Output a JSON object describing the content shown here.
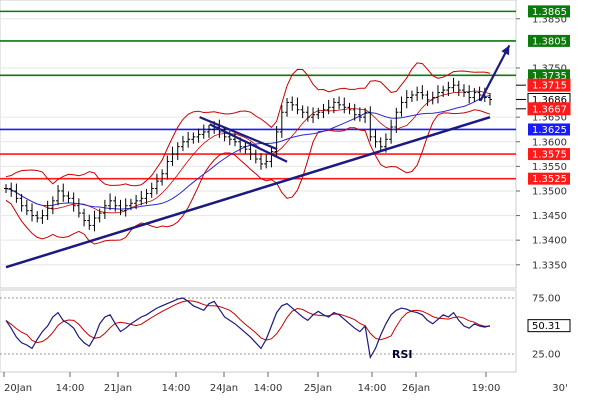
{
  "chart_data": [
    {
      "type": "candlestick",
      "y_axis": {
        "ticks": [
          "1.3850",
          "1.3750",
          "1.3650",
          "1.3600",
          "1.3550",
          "1.3500",
          "1.3450",
          "1.3400",
          "1.3350"
        ],
        "ylim": [
          1.3315,
          1.388
        ]
      },
      "x_axis": {
        "ticks": [
          "20Jan",
          "14:00",
          "21Jan",
          "14:00",
          "24Jan",
          "14:00",
          "25Jan",
          "14:00",
          "26Jan",
          "19:00"
        ],
        "corner_label": "30'"
      },
      "levels": [
        {
          "value": 1.3865,
          "label": "1.3865",
          "color": "#0a7a0a"
        },
        {
          "value": 1.3805,
          "label": "1.3805",
          "color": "#0a7a0a"
        },
        {
          "value": 1.3735,
          "label": "1.3735",
          "color": "#0a7a0a"
        },
        {
          "value": 1.3625,
          "label": "1.3625",
          "color": "#1a1aff"
        },
        {
          "value": 1.3575,
          "label": "1.3575",
          "color": "#ff1a1a"
        },
        {
          "value": 1.3525,
          "label": "1.3525",
          "color": "#ff1a1a"
        }
      ],
      "price_tags": [
        {
          "value": 1.3715,
          "label": "1.3715",
          "color": "#ff1a1a"
        },
        {
          "value": 1.3686,
          "label": "1.3686",
          "color": "#ffffff"
        },
        {
          "value": 1.3667,
          "label": "1.3667",
          "color": "#ff1a1a"
        }
      ],
      "trendline": {
        "from": [
          0,
          1.3345
        ],
        "to": [
          100,
          1.365
        ],
        "color": "#1a1a80"
      },
      "channel_line": {
        "from": [
          40,
          1.3595
        ],
        "to": [
          56,
          1.3596
        ],
        "color": "#1a1a80"
      },
      "upper_pattern_line": {
        "from": [
          40,
          1.365
        ],
        "to": [
          56,
          1.3585
        ],
        "color": "#1a1a80"
      },
      "projection_arrow": {
        "from": [
          98,
          1.3683
        ],
        "to": [
          104,
          1.3796
        ],
        "color": "#1a1a80"
      },
      "close_price": [
        1.3505,
        1.35,
        1.3485,
        1.347,
        1.346,
        1.345,
        1.3445,
        1.345,
        1.3465,
        1.348,
        1.35,
        1.349,
        1.3485,
        1.347,
        1.3455,
        1.344,
        1.343,
        1.3445,
        1.3455,
        1.347,
        1.348,
        1.347,
        1.346,
        1.347,
        1.3475,
        1.348,
        1.3485,
        1.3495,
        1.3505,
        1.352,
        1.3535,
        1.356,
        1.3575,
        1.359,
        1.36,
        1.3605,
        1.361,
        1.3615,
        1.362,
        1.3625,
        1.363,
        1.362,
        1.361,
        1.3605,
        1.36,
        1.359,
        1.3585,
        1.3575,
        1.3565,
        1.3555,
        1.356,
        1.358,
        1.362,
        1.366,
        1.368,
        1.3675,
        1.3665,
        1.366,
        1.365,
        1.3655,
        1.366,
        1.3665,
        1.367,
        1.368,
        1.3675,
        1.367,
        1.3665,
        1.3655,
        1.365,
        1.366,
        1.361,
        1.36,
        1.359,
        1.3605,
        1.363,
        1.366,
        1.368,
        1.369,
        1.3695,
        1.37,
        1.3695,
        1.3685,
        1.369,
        1.37,
        1.3705,
        1.371,
        1.3715,
        1.3705,
        1.37,
        1.369,
        1.37,
        1.3695,
        1.369,
        1.3686
      ],
      "rsi": {
        "label": "RSI",
        "levels": [
          "75.00",
          "25.00"
        ],
        "current": "50.31",
        "values": [
          55,
          48,
          40,
          35,
          33,
          30,
          38,
          45,
          50,
          58,
          62,
          55,
          52,
          48,
          40,
          35,
          32,
          40,
          52,
          58,
          60,
          52,
          45,
          48,
          52,
          55,
          58,
          60,
          63,
          66,
          68,
          70,
          72,
          74,
          75,
          72,
          68,
          66,
          64,
          70,
          72,
          65,
          58,
          55,
          52,
          48,
          44,
          40,
          35,
          30,
          38,
          50,
          62,
          68,
          70,
          66,
          62,
          58,
          55,
          60,
          63,
          60,
          58,
          62,
          60,
          56,
          52,
          48,
          45,
          50,
          22,
          30,
          42,
          52,
          60,
          64,
          66,
          65,
          63,
          62,
          60,
          55,
          52,
          56,
          60,
          58,
          62,
          55,
          50,
          48,
          52,
          50,
          49,
          50.31
        ]
      }
    }
  ]
}
